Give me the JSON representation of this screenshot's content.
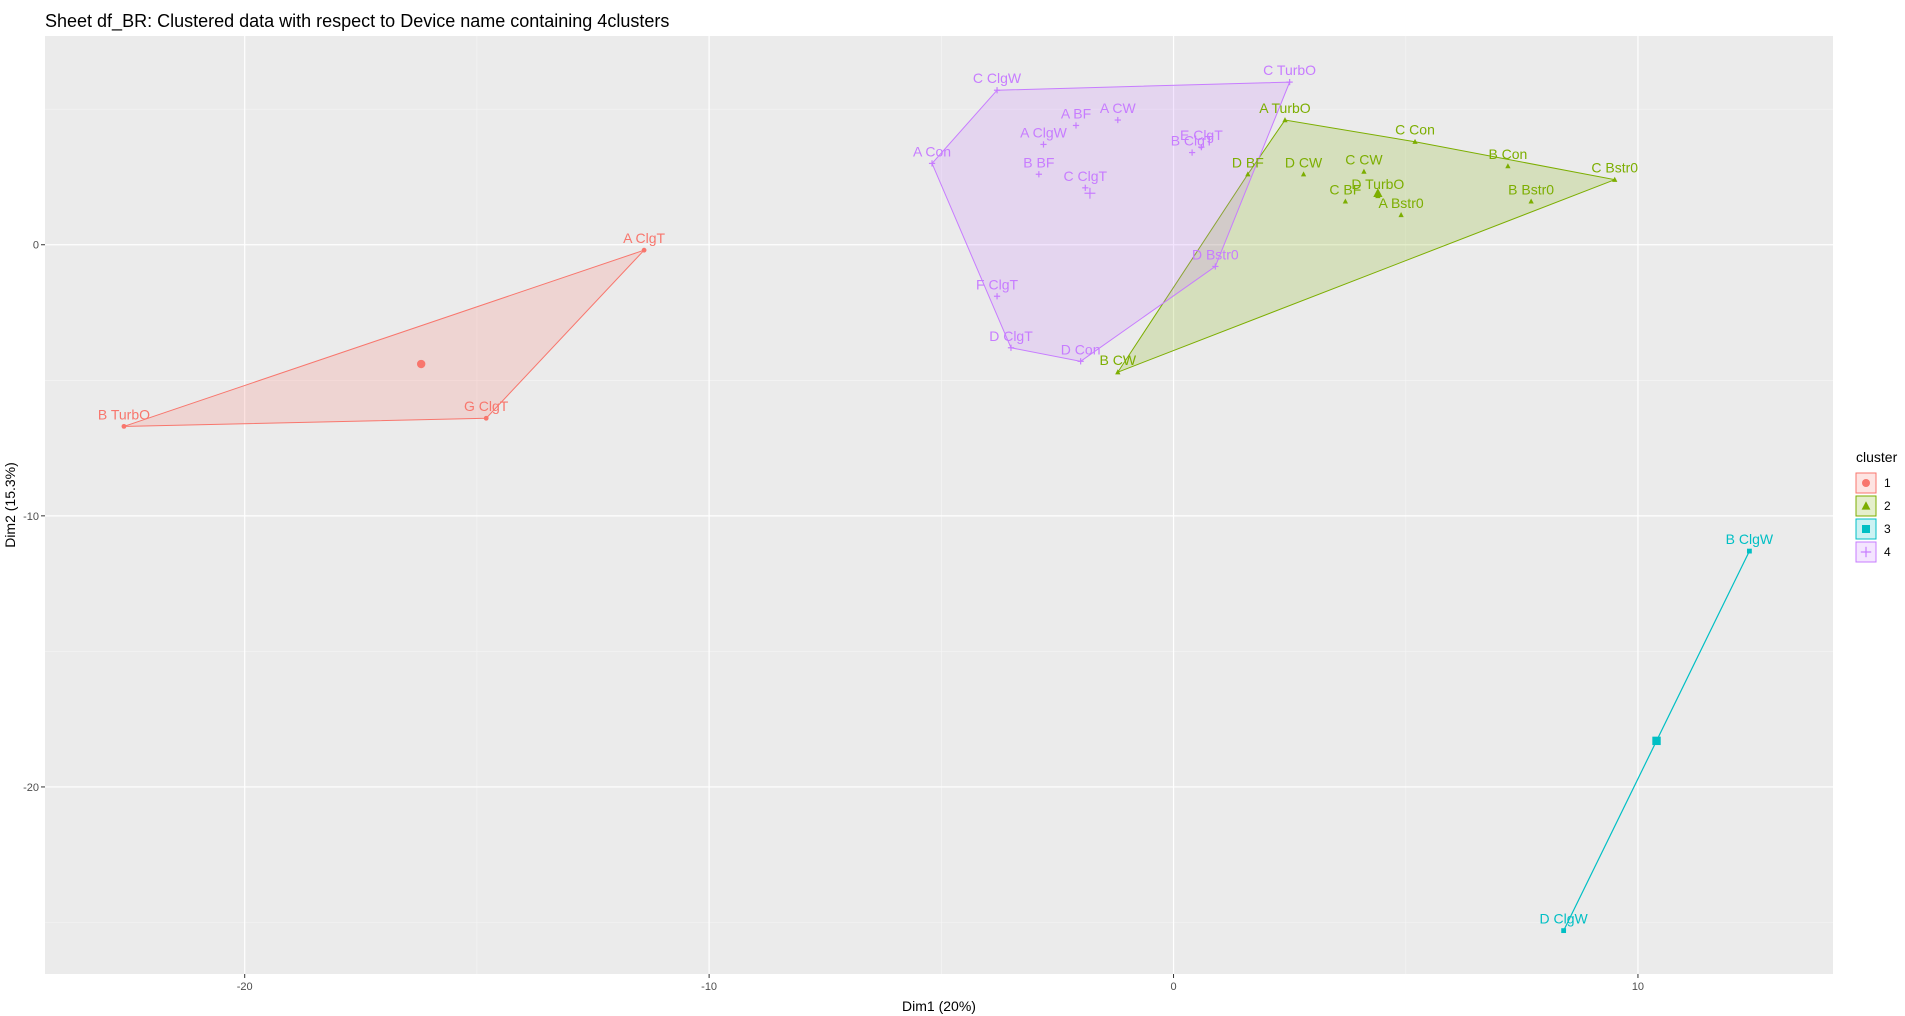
{
  "chart_data": {
    "type": "scatter",
    "title": "Sheet df_BR: Clustered data with respect to Device name containing 4clusters",
    "xlabel": "Dim1 (20%)",
    "ylabel": "Dim2 (15.3%)",
    "xlim": [
      -24.3,
      14.2
    ],
    "ylim": [
      -26.9,
      7.7
    ],
    "x_ticks": [
      -20,
      -10,
      0,
      10
    ],
    "y_ticks": [
      0,
      -10,
      -20
    ],
    "grid": true,
    "legend": {
      "title": "cluster",
      "position": "right"
    },
    "colors": {
      "1": "#F8766D",
      "2": "#7CAE00",
      "3": "#00BFC4",
      "4": "#C77CFF"
    },
    "clusters": [
      {
        "name": "1",
        "center": [
          -16.2,
          -4.4
        ],
        "points": [
          {
            "label": "A ClgT",
            "x": -11.4,
            "y": -0.2
          },
          {
            "label": "B TurbO",
            "x": -22.6,
            "y": -6.7
          },
          {
            "label": "G ClgT",
            "x": -14.8,
            "y": -6.4
          }
        ]
      },
      {
        "name": "2",
        "center": [
          4.4,
          1.9
        ],
        "points": [
          {
            "label": "A TurbO",
            "x": 2.4,
            "y": 4.6
          },
          {
            "label": "C Con",
            "x": 5.2,
            "y": 3.8
          },
          {
            "label": "B Con",
            "x": 7.2,
            "y": 2.9
          },
          {
            "label": "C Bstr0",
            "x": 9.5,
            "y": 2.4
          },
          {
            "label": "D BF",
            "x": 1.6,
            "y": 2.6
          },
          {
            "label": "D CW",
            "x": 2.8,
            "y": 2.6
          },
          {
            "label": "C CW",
            "x": 4.1,
            "y": 2.7
          },
          {
            "label": "C BF",
            "x": 3.7,
            "y": 1.6
          },
          {
            "label": "D TurbO",
            "x": 4.4,
            "y": 1.8
          },
          {
            "label": "A Bstr0",
            "x": 4.9,
            "y": 1.1
          },
          {
            "label": "B Bstr0",
            "x": 7.7,
            "y": 1.6
          },
          {
            "label": "B CW",
            "x": -1.2,
            "y": -4.7
          }
        ]
      },
      {
        "name": "3",
        "center": [
          10.4,
          -18.3
        ],
        "points": [
          {
            "label": "B ClgW",
            "x": 12.4,
            "y": -11.3
          },
          {
            "label": "D ClgW",
            "x": 8.4,
            "y": -25.3
          }
        ]
      },
      {
        "name": "4",
        "center": [
          -1.8,
          1.9
        ],
        "points": [
          {
            "label": "C ClgW",
            "x": -3.8,
            "y": 5.7
          },
          {
            "label": "C TurbO",
            "x": 2.5,
            "y": 6.0
          },
          {
            "label": "A BF",
            "x": -2.1,
            "y": 4.4
          },
          {
            "label": "A CW",
            "x": -1.2,
            "y": 4.6
          },
          {
            "label": "A ClgW",
            "x": -2.8,
            "y": 3.7
          },
          {
            "label": "E ClgT",
            "x": 0.6,
            "y": 3.6
          },
          {
            "label": "B ClgT",
            "x": 0.4,
            "y": 3.4
          },
          {
            "label": "A Con",
            "x": -5.2,
            "y": 3.0
          },
          {
            "label": "B BF",
            "x": -2.9,
            "y": 2.6
          },
          {
            "label": "C ClgT",
            "x": -1.9,
            "y": 2.1
          },
          {
            "label": "D Bstr0",
            "x": 0.9,
            "y": -0.8
          },
          {
            "label": "F ClgT",
            "x": -3.8,
            "y": -1.9
          },
          {
            "label": "D ClgT",
            "x": -3.5,
            "y": -3.8
          },
          {
            "label": "D Con",
            "x": -2.0,
            "y": -4.3
          }
        ]
      }
    ]
  }
}
